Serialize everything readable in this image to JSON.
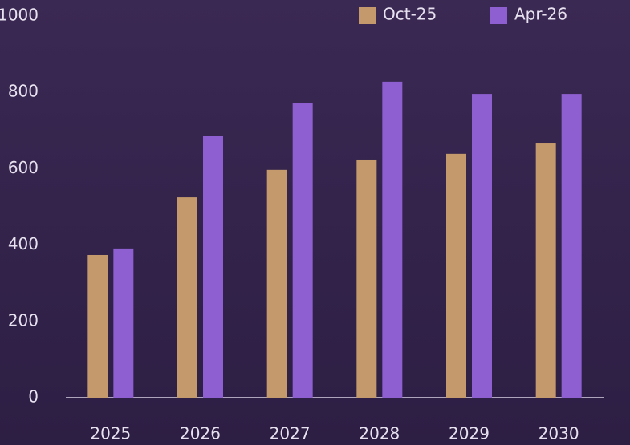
{
  "chart_data": {
    "type": "bar",
    "categories": [
      "2025",
      "2026",
      "2027",
      "2028",
      "2029",
      "2030"
    ],
    "series": [
      {
        "name": "Oct-25",
        "color": "#c49a6c",
        "values": [
          374,
          525,
          597,
          624,
          639,
          668
        ]
      },
      {
        "name": "Apr-26",
        "color": "#8e5fd0",
        "values": [
          391,
          685,
          771,
          828,
          796,
          796
        ]
      }
    ],
    "ylim": [
      0,
      1000
    ],
    "yticks": [
      0,
      200,
      400,
      600,
      800,
      1000
    ],
    "grid": false
  }
}
